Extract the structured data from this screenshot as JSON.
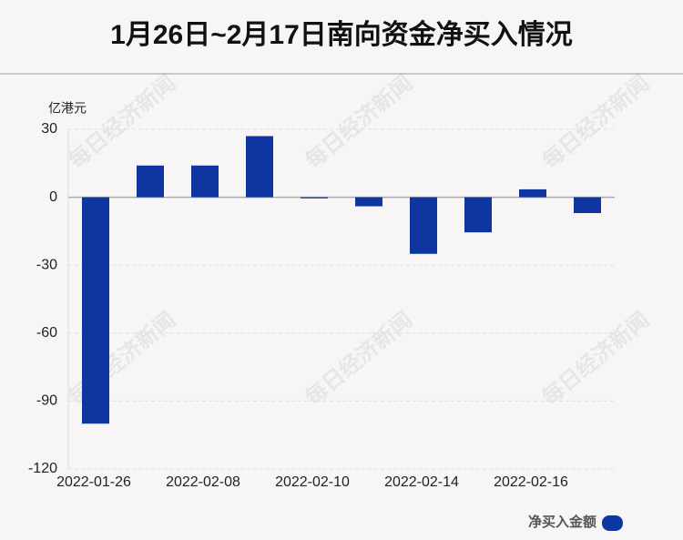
{
  "chart_data": {
    "type": "bar",
    "title": "1月26日~2月17日南向资金净买入情况",
    "y_axis_label": "亿港元",
    "categories": [
      "2022-01-26",
      null,
      "2022-02-08",
      null,
      "2022-02-10",
      null,
      "2022-02-14",
      null,
      "2022-02-16",
      null
    ],
    "series": [
      {
        "name": "净买入金额",
        "color": "#0f36a0",
        "values": [
          -100,
          14,
          14,
          27,
          -0.5,
          -4,
          -25,
          -15.5,
          3.5,
          -7
        ]
      }
    ],
    "ylim": [
      -120,
      30
    ],
    "yticks": [
      -120,
      -90,
      -60,
      -30,
      0,
      30
    ],
    "grid": true,
    "legend": "bottom-right",
    "watermark": "每日经济新闻"
  }
}
